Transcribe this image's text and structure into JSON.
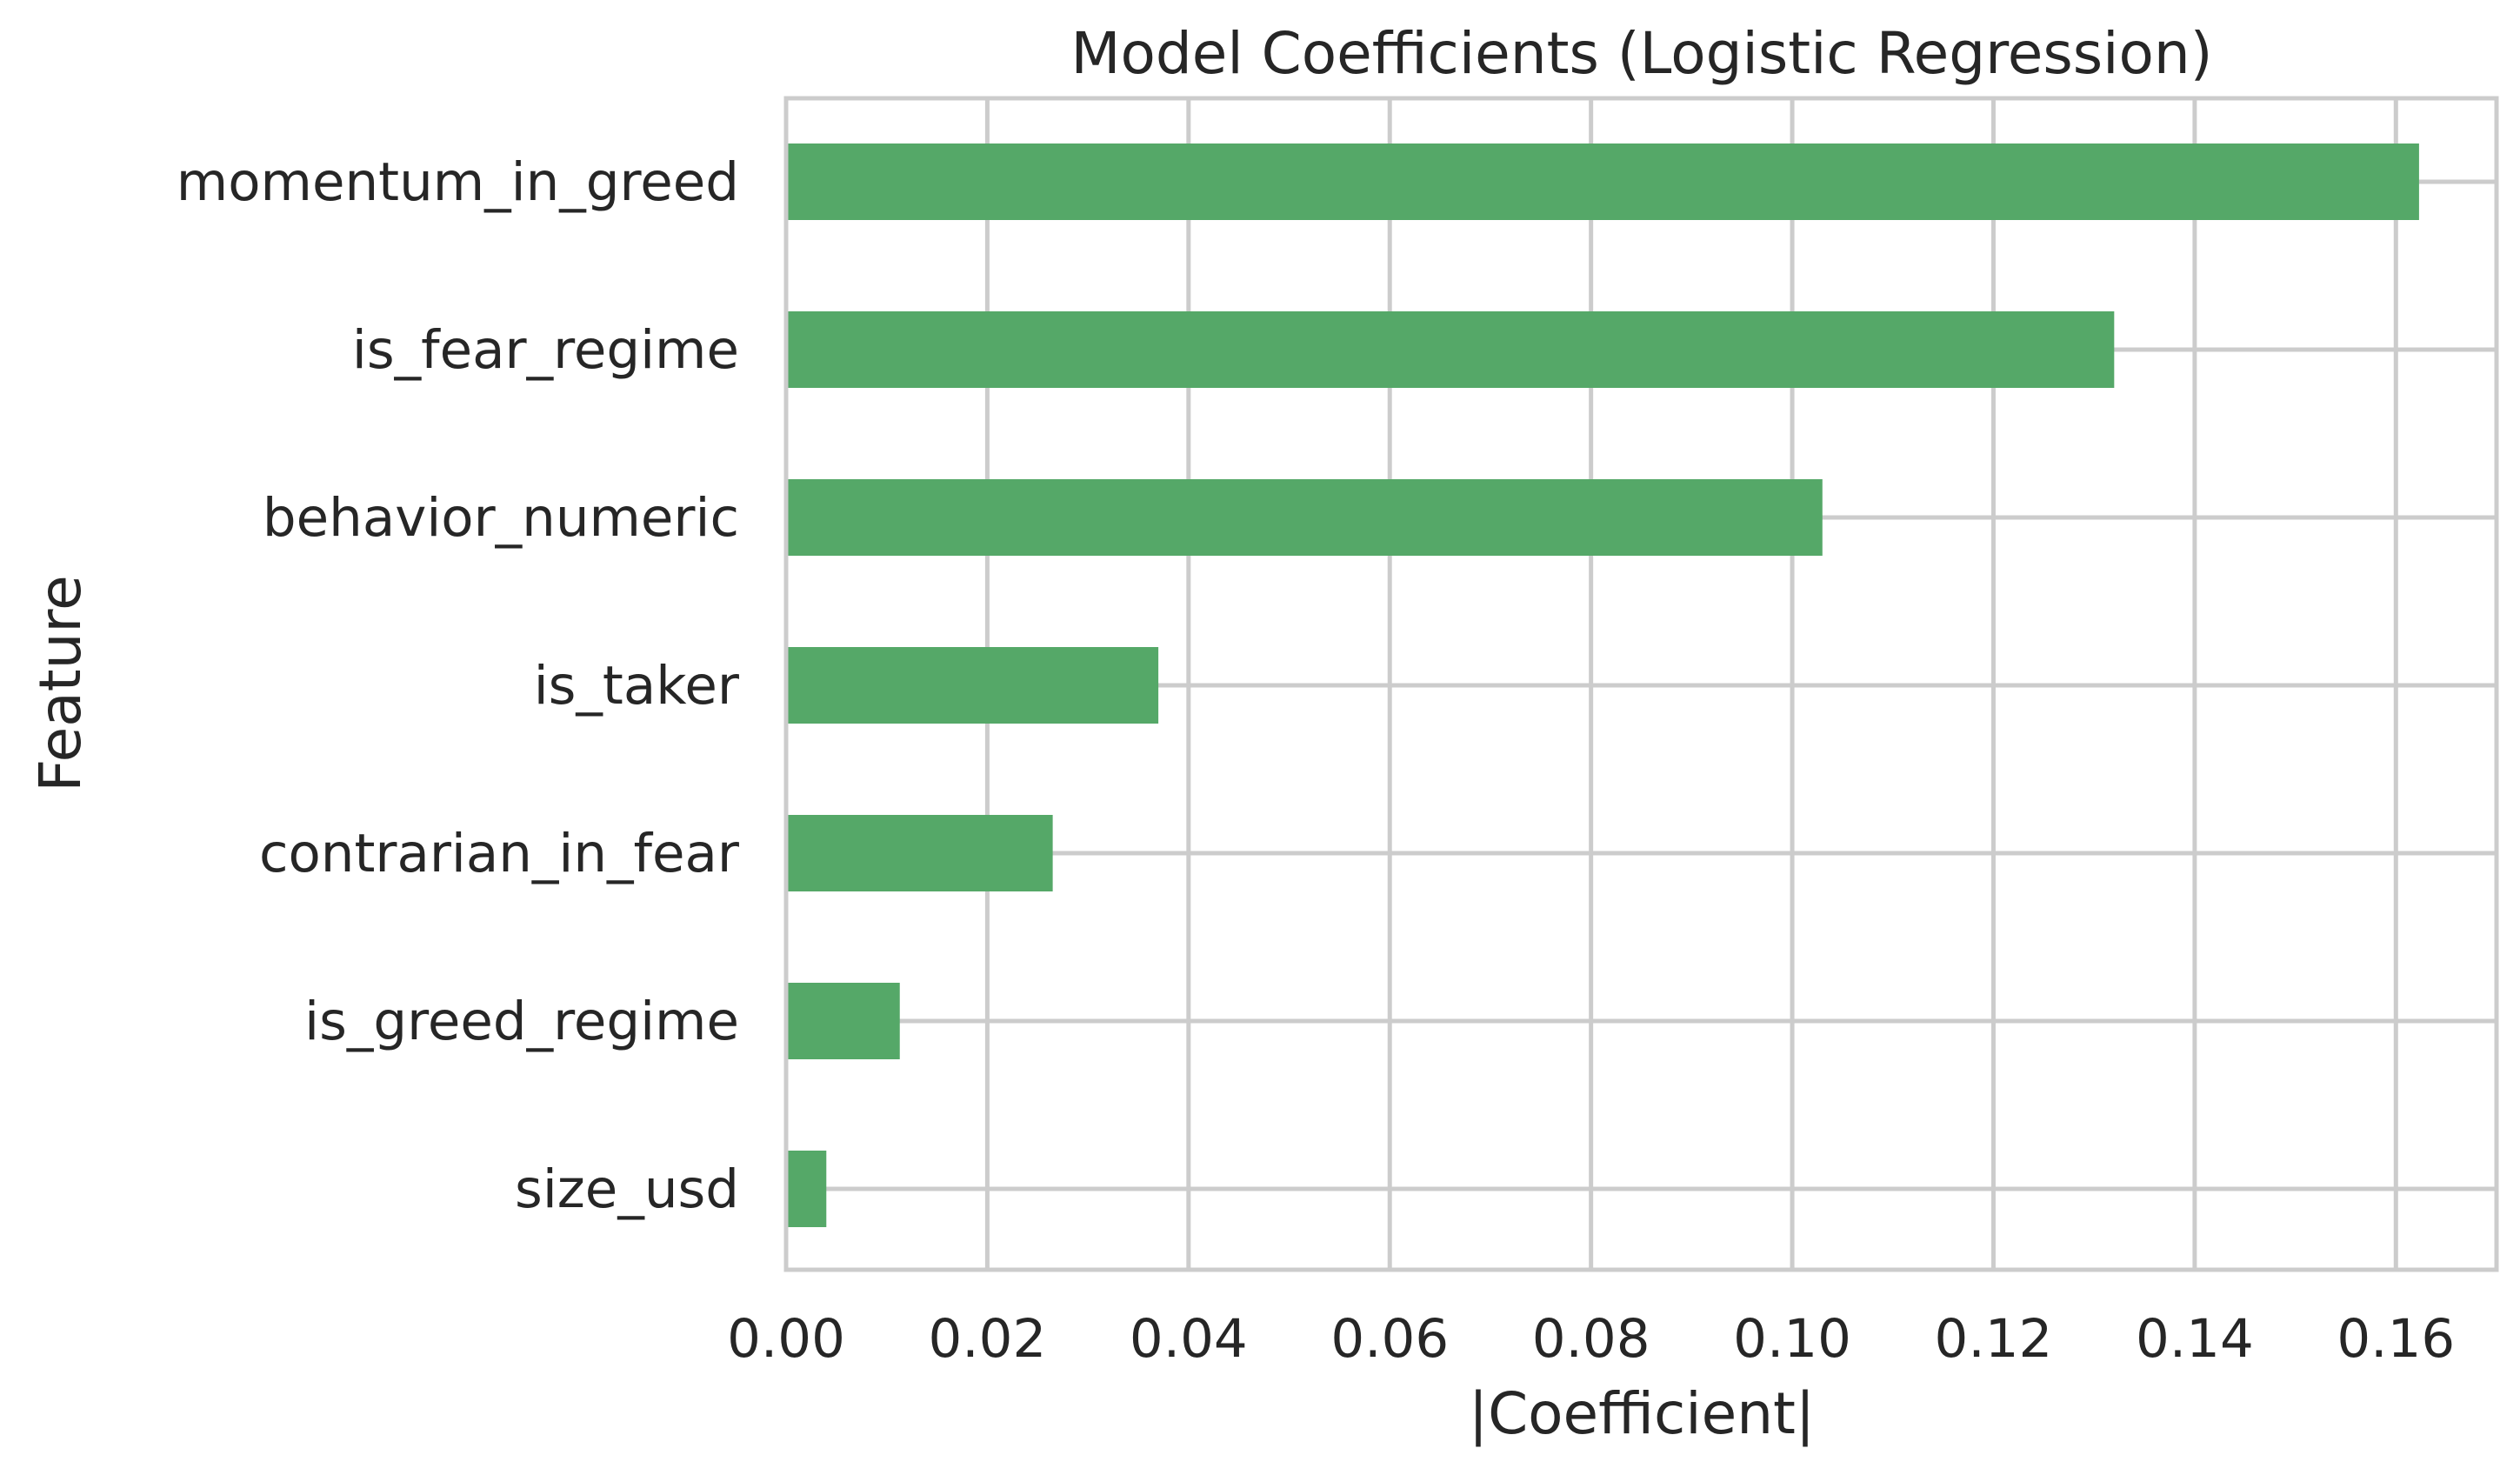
{
  "colors": {
    "bar": "#55a868",
    "grid": "#cccccc",
    "text": "#262626"
  },
  "chart_data": {
    "type": "bar",
    "orientation": "horizontal",
    "title": "Model Coefficients (Logistic Regression)",
    "xlabel": "|Coefficient|",
    "ylabel": "Feature",
    "categories": [
      "momentum_in_greed",
      "is_fear_regime",
      "behavior_numeric",
      "is_taker",
      "contrarian_in_fear",
      "is_greed_regime",
      "size_usd"
    ],
    "values": [
      0.1623,
      0.132,
      0.103,
      0.037,
      0.0265,
      0.0113,
      0.004
    ],
    "xlim": [
      0,
      0.17
    ],
    "xticks": [
      0.0,
      0.02,
      0.04,
      0.06,
      0.08,
      0.1,
      0.12,
      0.14,
      0.16
    ],
    "xtick_labels": [
      "0.00",
      "0.02",
      "0.04",
      "0.06",
      "0.08",
      "0.10",
      "0.12",
      "0.14",
      "0.16"
    ],
    "grid": true
  }
}
